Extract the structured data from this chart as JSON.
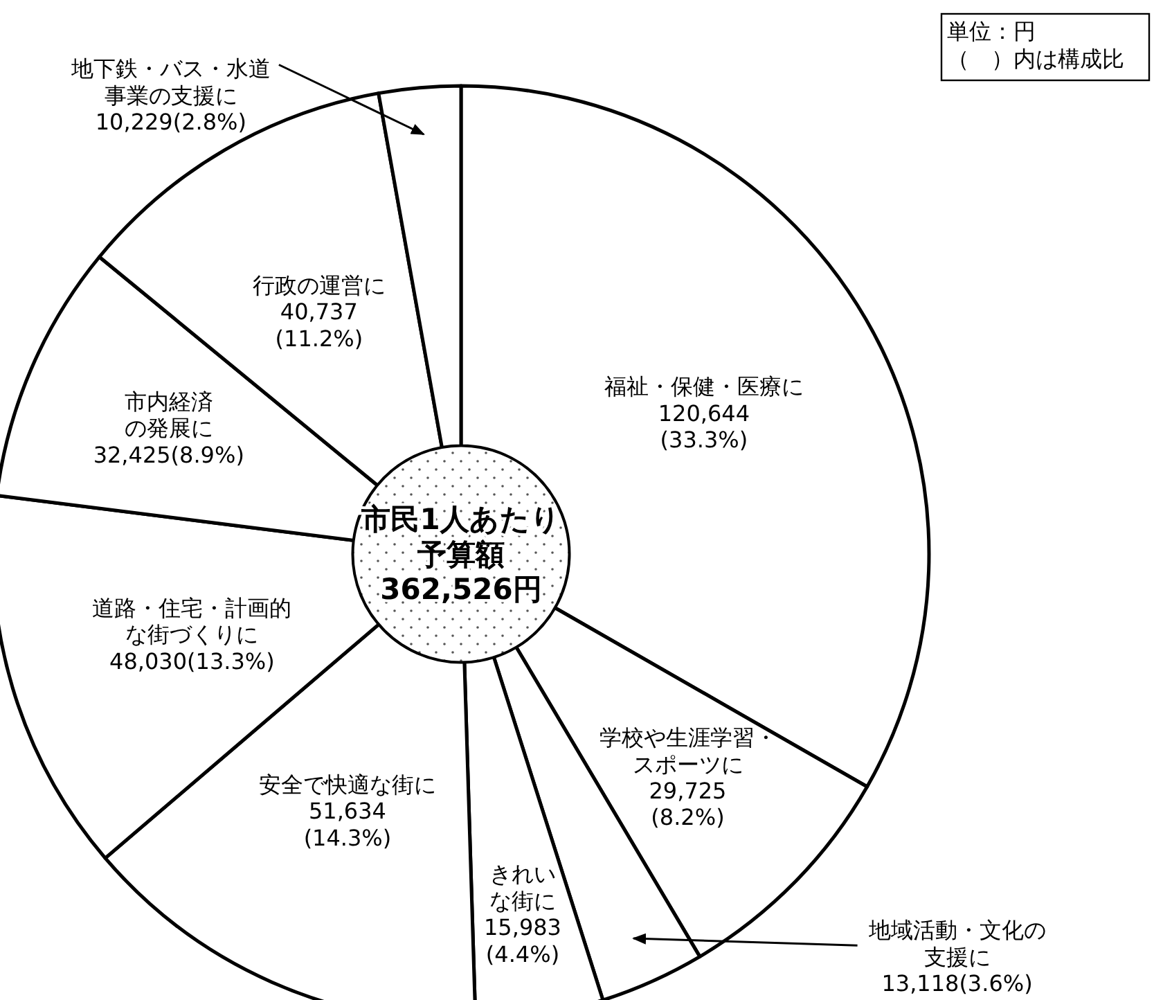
{
  "chart_data": {
    "type": "donut",
    "title": "市民1人あたり予算額362,526円",
    "annotations": [
      "単位：円（　）内は構成比"
    ],
    "categories": [
      "福祉・保健・医療に",
      "学校や生涯学習・スポーツに",
      "地域活動・文化の支援に",
      "きれいな街に",
      "安全で快適な街に",
      "道路・住宅・計画的な街づくりに",
      "市内経済の発展に",
      "行政の運営に",
      "地下鉄・バス・水道事業の支援に"
    ],
    "values": [
      120644,
      29725,
      13118,
      15983,
      51634,
      48030,
      32425,
      40737,
      10229
    ],
    "value_labels": [
      "120,644\n(33.3%)",
      "29,725\n(8.2%)",
      "13,118(3.6%)",
      "15,983\n(4.4%)",
      "51,634\n(14.3%)",
      "48,030(13.3%)",
      "32,425(8.9%)",
      "40,737\n(11.2%)",
      "10,229(2.8%)"
    ],
    "colors": [
      "#ffffff",
      "#ffffff",
      "#ffffff",
      "#ffffff",
      "#ffffff",
      "#ffffff",
      "#ffffff",
      "#ffffff",
      "#ffffff"
    ]
  }
}
